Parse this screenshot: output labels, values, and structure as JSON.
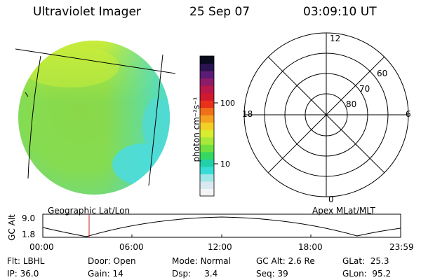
{
  "header": {
    "title": "Ultraviolet Imager",
    "date": "25 Sep 07",
    "time": "03:09:10 UT"
  },
  "colorbar": {
    "unit_label": "photon cm⁻²s⁻¹",
    "ticks": [
      "100",
      "10"
    ],
    "colors": [
      "#f4f4f8",
      "#d8eaf0",
      "#9fe6e6",
      "#38dcd6",
      "#22d0a8",
      "#35d860",
      "#6fe040",
      "#a8e83a",
      "#d8ec30",
      "#f2d028",
      "#f6a020",
      "#f07018",
      "#e8301c",
      "#d01830",
      "#b8184a",
      "#8c1c68",
      "#5a1c74",
      "#2a1450",
      "#0a0a1e"
    ]
  },
  "left_panel": {
    "caption": "Geographic Lat/Lon",
    "globe_colors": {
      "base": "#8fe04a",
      "edge_top": "#c8ec3a",
      "cyan": "#48dcdc",
      "right": "#5cd8c0"
    }
  },
  "polar_plot": {
    "caption": "Apex MLat/MLT",
    "mlt_labels": {
      "top": "12",
      "left": "18",
      "right": "6",
      "bottom": "0"
    },
    "lat_labels": [
      "60",
      "70",
      "80"
    ]
  },
  "altitude_plot": {
    "ylabel": "GC Alt",
    "yticks": [
      "9.0",
      "1.8"
    ],
    "xticks": [
      "00:00",
      "06:00",
      "12:00",
      "18:00",
      "23:59"
    ],
    "marker_time": "03:09",
    "marker_color": "#cc2222"
  },
  "status": {
    "row1": [
      {
        "label": "Flt:",
        "value": "LBHL"
      },
      {
        "label": "Door:",
        "value": "Open"
      },
      {
        "label": "Mode:",
        "value": "Normal"
      },
      {
        "label": "GC Alt:",
        "value": "2.6 Re"
      },
      {
        "label": "GLat:",
        "value": "25.3"
      }
    ],
    "row2": [
      {
        "label": "IP:",
        "value": "36.0"
      },
      {
        "label": "Gain:",
        "value": "14"
      },
      {
        "label": "Dsp:",
        "value": "3.4"
      },
      {
        "label": "Seq:",
        "value": "39"
      },
      {
        "label": "GLon:",
        "value": "95.2"
      }
    ]
  }
}
